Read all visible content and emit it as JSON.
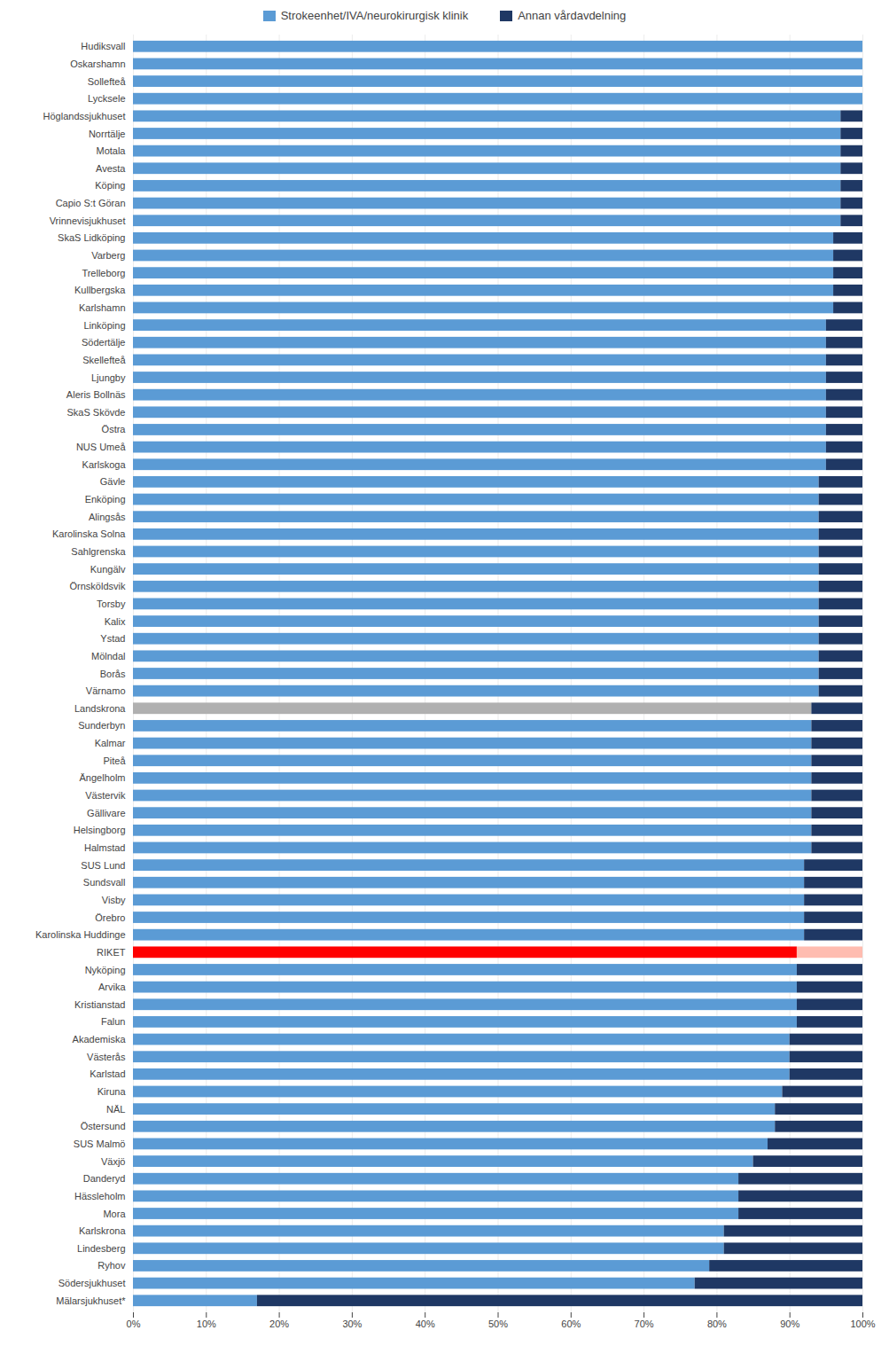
{
  "chart_data": {
    "type": "bar",
    "orientation": "horizontal",
    "stacked": true,
    "grid": true,
    "legend": "top",
    "categories": [
      "Hudiksvall",
      "Oskarshamn",
      "Sollefteå",
      "Lycksele",
      "Höglandssjukhuset",
      "Norrtälje",
      "Motala",
      "Avesta",
      "Köping",
      "Capio S:t Göran",
      "Vrinnevisjukhuset",
      "SkaS Lidköping",
      "Varberg",
      "Trelleborg",
      "Kullbergska",
      "Karlshamn",
      "Linköping",
      "Södertälje",
      "Skellefteå",
      "Ljungby",
      "Aleris Bollnäs",
      "SkaS Skövde",
      "Östra",
      "NUS Umeå",
      "Karlskoga",
      "Gävle",
      "Enköping",
      "Alingsås",
      "Karolinska Solna",
      "Sahlgrenska",
      "Kungälv",
      "Örnsköldsvik",
      "Torsby",
      "Kalix",
      "Ystad",
      "Mölndal",
      "Borås",
      "Värnamo",
      "Landskrona",
      "Sunderbyn",
      "Kalmar",
      "Piteå",
      "Ängelholm",
      "Västervik",
      "Gällivare",
      "Helsingborg",
      "Halmstad",
      "SUS Lund",
      "Sundsvall",
      "Visby",
      "Örebro",
      "Karolinska Huddinge",
      "RIKET",
      "Nyköping",
      "Arvika",
      "Kristianstad",
      "Falun",
      "Akademiska",
      "Västerås",
      "Karlstad",
      "Kiruna",
      "NÄL",
      "Östersund",
      "SUS Malmö",
      "Växjö",
      "Danderyd",
      "Hässleholm",
      "Mora",
      "Karlskrona",
      "Lindesberg",
      "Ryhov",
      "Södersjukhuset",
      "Mälarsjukhuset*"
    ],
    "series": [
      {
        "name": "Strokeenhet/IVA/neurokirurgisk klinik",
        "color": "#5B9BD5",
        "values": [
          100,
          100,
          100,
          100,
          97,
          97,
          97,
          97,
          97,
          97,
          97,
          96,
          96,
          96,
          96,
          96,
          95,
          95,
          95,
          95,
          95,
          95,
          95,
          95,
          95,
          94,
          94,
          94,
          94,
          94,
          94,
          94,
          94,
          94,
          94,
          94,
          94,
          94,
          93,
          93,
          93,
          93,
          93,
          93,
          93,
          93,
          93,
          92,
          92,
          92,
          92,
          92,
          91,
          91,
          91,
          91,
          91,
          90,
          90,
          90,
          89,
          88,
          88,
          87,
          85,
          83,
          83,
          83,
          81,
          81,
          79,
          77,
          17
        ],
        "colors": [
          "#5B9BD5",
          "#5B9BD5",
          "#5B9BD5",
          "#5B9BD5",
          "#5B9BD5",
          "#5B9BD5",
          "#5B9BD5",
          "#5B9BD5",
          "#5B9BD5",
          "#5B9BD5",
          "#5B9BD5",
          "#5B9BD5",
          "#5B9BD5",
          "#5B9BD5",
          "#5B9BD5",
          "#5B9BD5",
          "#5B9BD5",
          "#5B9BD5",
          "#5B9BD5",
          "#5B9BD5",
          "#5B9BD5",
          "#5B9BD5",
          "#5B9BD5",
          "#5B9BD5",
          "#5B9BD5",
          "#5B9BD5",
          "#5B9BD5",
          "#5B9BD5",
          "#5B9BD5",
          "#5B9BD5",
          "#5B9BD5",
          "#5B9BD5",
          "#5B9BD5",
          "#5B9BD5",
          "#5B9BD5",
          "#5B9BD5",
          "#5B9BD5",
          "#5B9BD5",
          "#B0B0B0",
          "#5B9BD5",
          "#5B9BD5",
          "#5B9BD5",
          "#5B9BD5",
          "#5B9BD5",
          "#5B9BD5",
          "#5B9BD5",
          "#5B9BD5",
          "#5B9BD5",
          "#5B9BD5",
          "#5B9BD5",
          "#5B9BD5",
          "#5B9BD5",
          "#FF0000",
          "#5B9BD5",
          "#5B9BD5",
          "#5B9BD5",
          "#5B9BD5",
          "#5B9BD5",
          "#5B9BD5",
          "#5B9BD5",
          "#5B9BD5",
          "#5B9BD5",
          "#5B9BD5",
          "#5B9BD5",
          "#5B9BD5",
          "#5B9BD5",
          "#5B9BD5",
          "#5B9BD5",
          "#5B9BD5",
          "#5B9BD5",
          "#5B9BD5",
          "#5B9BD5",
          "#5B9BD5"
        ]
      },
      {
        "name": "Annan vårdavdelning",
        "color": "#1F3864",
        "values": [
          0,
          0,
          0,
          0,
          3,
          3,
          3,
          3,
          3,
          3,
          3,
          4,
          4,
          4,
          4,
          4,
          5,
          5,
          5,
          5,
          5,
          5,
          5,
          5,
          5,
          6,
          6,
          6,
          6,
          6,
          6,
          6,
          6,
          6,
          6,
          6,
          6,
          6,
          7,
          7,
          7,
          7,
          7,
          7,
          7,
          7,
          7,
          8,
          8,
          8,
          8,
          8,
          9,
          9,
          9,
          9,
          9,
          10,
          10,
          10,
          11,
          12,
          12,
          13,
          15,
          17,
          17,
          17,
          19,
          19,
          21,
          23,
          83
        ],
        "colors": [
          "#1F3864",
          "#1F3864",
          "#1F3864",
          "#1F3864",
          "#1F3864",
          "#1F3864",
          "#1F3864",
          "#1F3864",
          "#1F3864",
          "#1F3864",
          "#1F3864",
          "#1F3864",
          "#1F3864",
          "#1F3864",
          "#1F3864",
          "#1F3864",
          "#1F3864",
          "#1F3864",
          "#1F3864",
          "#1F3864",
          "#1F3864",
          "#1F3864",
          "#1F3864",
          "#1F3864",
          "#1F3864",
          "#1F3864",
          "#1F3864",
          "#1F3864",
          "#1F3864",
          "#1F3864",
          "#1F3864",
          "#1F3864",
          "#1F3864",
          "#1F3864",
          "#1F3864",
          "#1F3864",
          "#1F3864",
          "#1F3864",
          "#1F3864",
          "#1F3864",
          "#1F3864",
          "#1F3864",
          "#1F3864",
          "#1F3864",
          "#1F3864",
          "#1F3864",
          "#1F3864",
          "#1F3864",
          "#1F3864",
          "#1F3864",
          "#1F3864",
          "#1F3864",
          "#FFBCB0",
          "#1F3864",
          "#1F3864",
          "#1F3864",
          "#1F3864",
          "#1F3864",
          "#1F3864",
          "#1F3864",
          "#1F3864",
          "#1F3864",
          "#1F3864",
          "#1F3864",
          "#1F3864",
          "#1F3864",
          "#1F3864",
          "#1F3864",
          "#1F3864",
          "#1F3864",
          "#1F3864",
          "#1F3864",
          "#1F3864"
        ]
      }
    ],
    "xlim": [
      0,
      100
    ],
    "xticks": [
      {
        "value": 0,
        "label": "0%"
      },
      {
        "value": 10,
        "label": "10%"
      },
      {
        "value": 20,
        "label": "20%"
      },
      {
        "value": 30,
        "label": "30%"
      },
      {
        "value": 40,
        "label": "40%"
      },
      {
        "value": 50,
        "label": "50%"
      },
      {
        "value": 60,
        "label": "60%"
      },
      {
        "value": 70,
        "label": "70%"
      },
      {
        "value": 80,
        "label": "80%"
      },
      {
        "value": 90,
        "label": "90%"
      },
      {
        "value": 100,
        "label": "100%"
      }
    ]
  }
}
